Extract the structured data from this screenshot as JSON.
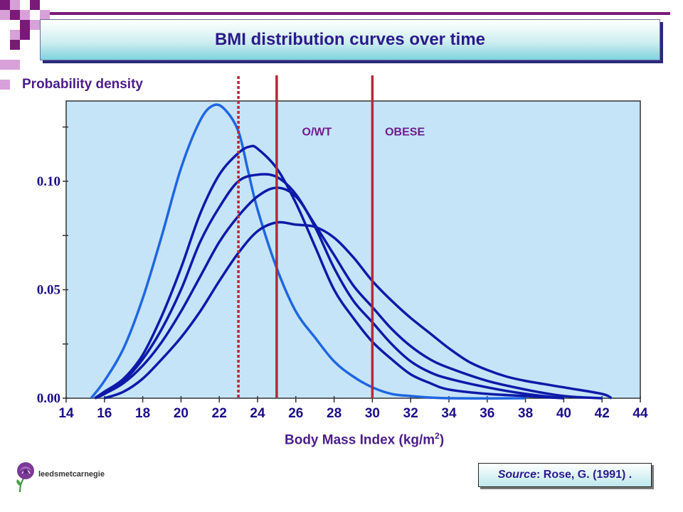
{
  "colors": {
    "plot_bg": "#c6e4f8",
    "curve_light": "#1f66e0",
    "curve_dark": "#0d1aa8",
    "cutoff": "#b3293a",
    "tick_label": "#1b0e88",
    "label_purple": "#6b1d8a",
    "decor_purple": "#7a1a78",
    "decor_pink": "#d8a0d8"
  },
  "title": "BMI distribution curves over time",
  "source": {
    "prefix": "Source",
    "text": ": Rose, G. (1991) ."
  },
  "logo_text": "leedsmetcarnegie",
  "chart_data": {
    "type": "line",
    "ylabel": "Probability density",
    "xlabel_main": "Body Mass Index (kg/m",
    "xlabel_sup": "2",
    "xlabel_end": ")",
    "xlim": [
      14,
      44
    ],
    "ylim": [
      0,
      0.137
    ],
    "xticks": [
      "14",
      "16",
      "18",
      "20",
      "22",
      "24",
      "26",
      "28",
      "30",
      "32",
      "34",
      "36",
      "38",
      "40",
      "42",
      "44"
    ],
    "yticks": [
      {
        "value": 0.0,
        "label": "0.00"
      },
      {
        "value": 0.05,
        "label": "0.05"
      },
      {
        "value": 0.1,
        "label": "0.10"
      }
    ],
    "grid": false,
    "annotations": [
      {
        "text": "O/WT",
        "x": 27.1,
        "y": 0.123
      },
      {
        "text": "OBESE",
        "x": 31.7,
        "y": 0.123
      }
    ],
    "vlines": [
      {
        "x": 23,
        "style": "dotted"
      },
      {
        "x": 25,
        "style": "solid"
      },
      {
        "x": 30,
        "style": "solid"
      }
    ],
    "series": [
      {
        "points": [
          [
            15.3,
            0.0
          ],
          [
            16,
            0.008
          ],
          [
            17,
            0.023
          ],
          [
            18,
            0.046
          ],
          [
            19,
            0.075
          ],
          [
            20,
            0.106
          ],
          [
            21,
            0.128
          ],
          [
            21.7,
            0.135
          ],
          [
            22.3,
            0.133
          ],
          [
            23,
            0.123
          ],
          [
            23.5,
            0.105
          ],
          [
            24,
            0.087
          ],
          [
            25,
            0.06
          ],
          [
            26,
            0.04
          ],
          [
            27,
            0.028
          ],
          [
            28,
            0.017
          ],
          [
            29,
            0.01
          ],
          [
            30,
            0.005
          ],
          [
            31,
            0.002
          ],
          [
            32,
            0.001
          ],
          [
            34,
            0.0
          ],
          [
            38,
            0.0
          ]
        ]
      },
      {
        "points": [
          [
            15.5,
            0.0
          ],
          [
            16,
            0.003
          ],
          [
            17,
            0.009
          ],
          [
            18,
            0.02
          ],
          [
            19,
            0.038
          ],
          [
            20,
            0.06
          ],
          [
            21,
            0.085
          ],
          [
            22,
            0.103
          ],
          [
            23,
            0.113
          ],
          [
            23.6,
            0.116
          ],
          [
            24,
            0.115
          ],
          [
            25,
            0.106
          ],
          [
            26,
            0.09
          ],
          [
            27,
            0.07
          ],
          [
            28,
            0.05
          ],
          [
            29,
            0.037
          ],
          [
            30,
            0.026
          ],
          [
            31,
            0.018
          ],
          [
            32,
            0.011
          ],
          [
            33,
            0.007
          ],
          [
            34,
            0.004
          ],
          [
            36,
            0.002
          ],
          [
            38,
            0.001
          ],
          [
            40,
            0.0
          ]
        ]
      },
      {
        "points": [
          [
            15.5,
            0.0
          ],
          [
            16,
            0.002
          ],
          [
            17,
            0.008
          ],
          [
            18,
            0.018
          ],
          [
            19,
            0.032
          ],
          [
            20,
            0.05
          ],
          [
            21,
            0.072
          ],
          [
            22,
            0.088
          ],
          [
            23,
            0.1
          ],
          [
            24,
            0.103
          ],
          [
            25,
            0.102
          ],
          [
            26,
            0.094
          ],
          [
            27,
            0.079
          ],
          [
            28,
            0.06
          ],
          [
            29,
            0.045
          ],
          [
            30,
            0.035
          ],
          [
            31,
            0.025
          ],
          [
            32,
            0.017
          ],
          [
            33,
            0.012
          ],
          [
            34,
            0.009
          ],
          [
            36,
            0.005
          ],
          [
            38,
            0.002
          ],
          [
            40,
            0.0
          ]
        ]
      },
      {
        "points": [
          [
            15.5,
            0.0
          ],
          [
            16,
            0.002
          ],
          [
            17,
            0.007
          ],
          [
            18,
            0.015
          ],
          [
            19,
            0.026
          ],
          [
            20,
            0.04
          ],
          [
            21,
            0.056
          ],
          [
            22,
            0.072
          ],
          [
            23,
            0.084
          ],
          [
            24,
            0.093
          ],
          [
            25,
            0.097
          ],
          [
            26,
            0.093
          ],
          [
            27,
            0.08
          ],
          [
            28,
            0.066
          ],
          [
            29,
            0.052
          ],
          [
            30,
            0.042
          ],
          [
            31,
            0.032
          ],
          [
            32,
            0.024
          ],
          [
            33,
            0.018
          ],
          [
            34,
            0.014
          ],
          [
            36,
            0.008
          ],
          [
            38,
            0.004
          ],
          [
            40,
            0.001
          ],
          [
            42,
            0.0
          ]
        ]
      },
      {
        "points": [
          [
            16,
            0.0
          ],
          [
            17,
            0.003
          ],
          [
            18,
            0.009
          ],
          [
            19,
            0.018
          ],
          [
            20,
            0.028
          ],
          [
            21,
            0.04
          ],
          [
            22,
            0.054
          ],
          [
            23,
            0.067
          ],
          [
            24,
            0.077
          ],
          [
            25,
            0.081
          ],
          [
            26,
            0.08
          ],
          [
            27,
            0.079
          ],
          [
            28,
            0.074
          ],
          [
            29,
            0.065
          ],
          [
            30,
            0.054
          ],
          [
            31,
            0.045
          ],
          [
            32,
            0.037
          ],
          [
            33,
            0.03
          ],
          [
            34,
            0.023
          ],
          [
            35,
            0.017
          ],
          [
            36,
            0.013
          ],
          [
            37,
            0.01
          ],
          [
            38,
            0.008
          ],
          [
            40,
            0.005
          ],
          [
            42,
            0.002
          ],
          [
            42.5,
            0.0
          ]
        ]
      }
    ]
  }
}
